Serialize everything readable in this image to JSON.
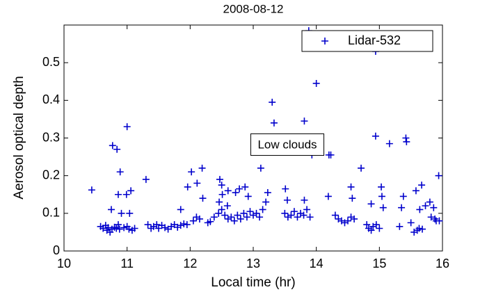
{
  "chart_data": {
    "type": "scatter",
    "title": "2008-08-12",
    "x_label": "Local time (hr)",
    "y_label": "Aerosol optical depth",
    "annotation": "Low clouds",
    "legend": "upper right",
    "xlim": [
      10,
      16
    ],
    "xticks": [
      10,
      11,
      12,
      13,
      14,
      15,
      16
    ],
    "ylim": [
      0,
      0.6
    ],
    "yticks": [
      0,
      0.1,
      0.2,
      0.3,
      0.4,
      0.5
    ],
    "series": [
      {
        "name": "Lidar-532",
        "color": "#0000cc",
        "x": [
          10.44,
          10.77,
          10.84,
          10.89,
          10.86,
          10.91,
          10.75,
          11.0,
          10.99,
          11.06,
          11.04,
          11.3,
          11.96,
          12.02,
          12.11,
          12.19,
          12.2,
          11.85,
          12.46,
          12.47,
          12.5,
          12.51,
          12.6,
          12.59,
          12.72,
          12.78,
          12.87,
          12.92,
          13.12,
          13.23,
          13.2,
          13.3,
          13.33,
          13.51,
          13.54,
          13.81,
          13.81,
          13.93,
          14.0,
          14.2,
          14.23,
          14.19,
          14.55,
          14.57,
          14.71,
          14.87,
          14.94,
          15.03,
          15.04,
          15.06,
          14.94,
          13.88,
          15.16,
          15.42,
          15.43,
          15.38,
          15.35,
          15.32,
          15.58,
          15.67,
          15.73,
          15.64,
          15.8,
          15.86,
          15.94,
          15.9,
          10.58,
          10.62,
          10.66,
          10.68,
          10.7,
          10.73,
          10.76,
          10.8,
          10.83,
          10.86,
          10.88,
          10.95,
          11.0,
          11.03,
          11.08,
          11.12,
          11.33,
          11.38,
          11.42,
          11.47,
          11.5,
          11.55,
          11.6,
          11.65,
          11.7,
          11.75,
          11.8,
          11.85,
          11.9,
          11.95,
          12.05,
          12.1,
          12.15,
          12.28,
          12.32,
          12.38,
          12.45,
          12.5,
          12.55,
          12.6,
          12.65,
          12.7,
          12.75,
          12.8,
          12.85,
          12.9,
          12.95,
          13.0,
          13.05,
          13.1,
          13.15,
          13.5,
          13.55,
          13.6,
          13.65,
          13.7,
          13.75,
          13.8,
          13.85,
          13.9,
          14.3,
          14.35,
          14.4,
          14.45,
          14.5,
          14.55,
          14.6,
          14.8,
          14.83,
          14.87,
          14.9,
          14.95,
          15.0,
          15.5,
          15.55,
          15.6,
          15.63,
          15.68,
          15.82,
          15.88,
          15.95
        ],
        "values": [
          0.162,
          0.28,
          0.27,
          0.21,
          0.15,
          0.1,
          0.11,
          0.33,
          0.15,
          0.16,
          0.1,
          0.19,
          0.17,
          0.21,
          0.18,
          0.22,
          0.14,
          0.11,
          0.13,
          0.19,
          0.175,
          0.15,
          0.16,
          0.12,
          0.155,
          0.165,
          0.17,
          0.145,
          0.22,
          0.155,
          0.13,
          0.395,
          0.34,
          0.165,
          0.135,
          0.345,
          0.135,
          0.255,
          0.445,
          0.255,
          0.255,
          0.145,
          0.17,
          0.14,
          0.22,
          0.125,
          0.305,
          0.17,
          0.145,
          0.115,
          0.53,
          0.585,
          0.285,
          0.3,
          0.29,
          0.145,
          0.115,
          0.065,
          0.16,
          0.175,
          0.12,
          0.11,
          0.13,
          0.115,
          0.2,
          0.08,
          0.065,
          0.06,
          0.068,
          0.055,
          0.062,
          0.05,
          0.058,
          0.063,
          0.06,
          0.07,
          0.058,
          0.062,
          0.065,
          0.058,
          0.055,
          0.06,
          0.07,
          0.06,
          0.065,
          0.07,
          0.06,
          0.068,
          0.062,
          0.058,
          0.065,
          0.07,
          0.063,
          0.068,
          0.072,
          0.07,
          0.08,
          0.09,
          0.085,
          0.075,
          0.078,
          0.09,
          0.1,
          0.11,
          0.095,
          0.085,
          0.09,
          0.08,
          0.095,
          0.085,
          0.1,
          0.09,
          0.105,
          0.095,
          0.1,
          0.09,
          0.11,
          0.1,
          0.09,
          0.095,
          0.105,
          0.09,
          0.1,
          0.095,
          0.11,
          0.09,
          0.095,
          0.085,
          0.08,
          0.075,
          0.08,
          0.09,
          0.085,
          0.07,
          0.06,
          0.055,
          0.065,
          0.07,
          0.06,
          0.075,
          0.05,
          0.055,
          0.06,
          0.058,
          0.09,
          0.085,
          0.08
        ]
      }
    ]
  }
}
